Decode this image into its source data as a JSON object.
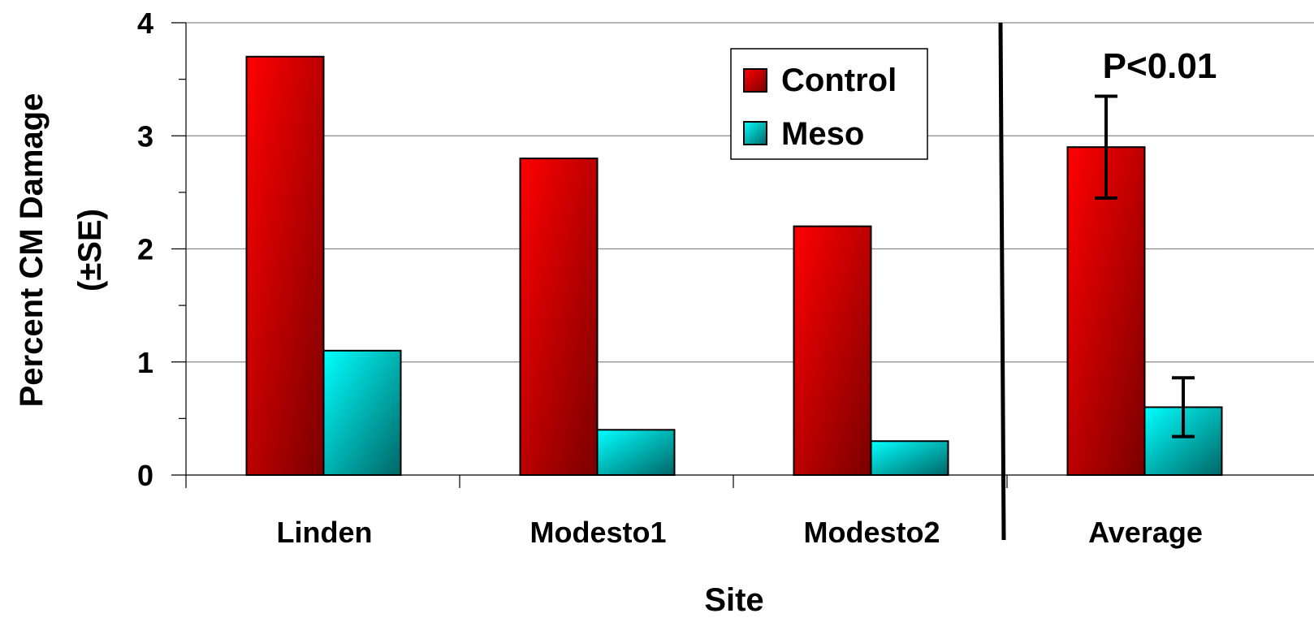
{
  "chart_data": {
    "type": "bar",
    "categories": [
      "Linden",
      "Modesto1",
      "Modesto2",
      "Average"
    ],
    "series": [
      {
        "name": "Control",
        "values": [
          3.7,
          2.8,
          2.2,
          2.9
        ],
        "color": "#ff0000"
      },
      {
        "name": "Meso",
        "values": [
          1.1,
          0.4,
          0.3,
          0.6
        ],
        "color": "#00ffff"
      }
    ],
    "error_bars": {
      "category": "Average",
      "Control": [
        2.45,
        3.35
      ],
      "Meso": [
        0.34,
        0.86
      ]
    },
    "ylim": [
      0,
      4
    ],
    "yticks": [
      "0",
      "1",
      "2",
      "3",
      "4"
    ],
    "xlabel": "Site",
    "ylabel": [
      "Percent CM Damage",
      "(±SE)"
    ],
    "annotation": "P<0.01",
    "grid": true,
    "legend_position": "top-right",
    "separator_before": "Average"
  }
}
